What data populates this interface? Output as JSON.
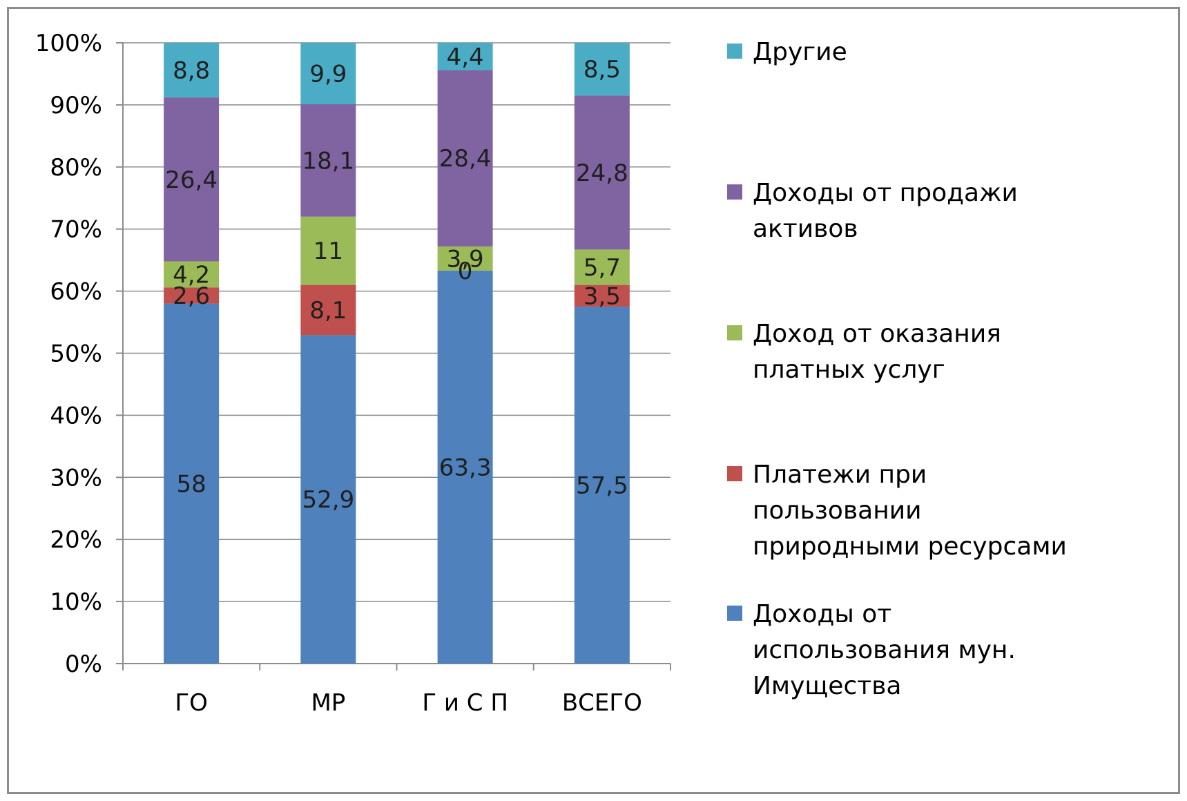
{
  "chart_data": {
    "type": "bar",
    "stacked": true,
    "percent_stacked": true,
    "categories": [
      "ГО",
      "МР",
      "Г и С П",
      "ВСЕГО"
    ],
    "y_ticks": [
      "0%",
      "10%",
      "20%",
      "30%",
      "40%",
      "50%",
      "60%",
      "70%",
      "80%",
      "90%",
      "100%"
    ],
    "ylim": [
      0,
      100
    ],
    "grid": true,
    "legend_position": "right",
    "series": [
      {
        "name_lines": [
          "Доходы от",
          "использования мун.",
          "Имущества"
        ],
        "color": "#4f81bd",
        "values": [
          58,
          52.9,
          63.3,
          57.5
        ],
        "labels": [
          "58",
          "52,9",
          "63,3",
          "57,5"
        ]
      },
      {
        "name_lines": [
          "Платежи при",
          "пользовании",
          "природными ресурсами"
        ],
        "color": "#c0504d",
        "values": [
          2.6,
          8.1,
          0,
          3.5
        ],
        "labels": [
          "2,6",
          "8,1",
          "0",
          "3,5"
        ]
      },
      {
        "name_lines": [
          "Доход от оказания",
          "платных услуг"
        ],
        "color": "#9bbb59",
        "values": [
          4.2,
          11,
          3.9,
          5.7
        ],
        "labels": [
          "4,2",
          "11",
          "3,9",
          "5,7"
        ]
      },
      {
        "name_lines": [
          "Доходы от продажи",
          "активов"
        ],
        "color": "#8064a2",
        "values": [
          26.4,
          18.1,
          28.4,
          24.8
        ],
        "labels": [
          "26,4",
          "18,1",
          "28,4",
          "24,8"
        ]
      },
      {
        "name_lines": [
          "Другие"
        ],
        "color": "#4bacc6",
        "values": [
          8.8,
          9.9,
          4.4,
          8.5
        ],
        "labels": [
          "8,8",
          "9,9",
          "4,4",
          "8,5"
        ]
      }
    ]
  }
}
